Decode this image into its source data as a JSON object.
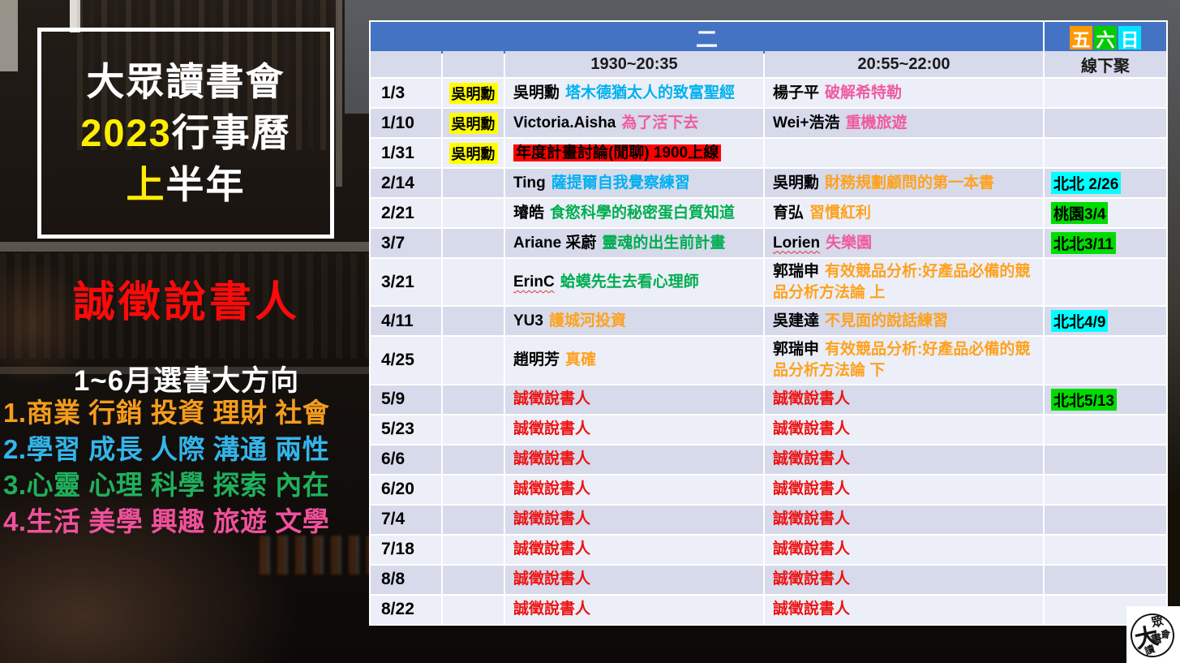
{
  "colors": {
    "header_blue": "#4573C4",
    "row_light": "#ECEFF7",
    "row_dark": "#D6DAEB",
    "t_blue": "#00B0F0",
    "t_magenta": "#EF5BA1",
    "t_green": "#00AD52",
    "t_orange": "#FFA11E",
    "t_red": "#EE1111",
    "hl_yellow": "#FFFF00",
    "hl_red": "#FF0000",
    "hl_cyan": "#00FFFF",
    "hl_green": "#00DC00",
    "wk_fri": "#FF9900",
    "wk_sat": "#00CC00",
    "wk_sun": "#00E5FF",
    "dir1": "#F59C1E",
    "dir2": "#33B5E9",
    "dir3": "#1FB05C",
    "dir4": "#F0519B",
    "title_yellow": "#FFEE00",
    "recruit_red": "#FA0A0A"
  },
  "left": {
    "title1": "大眾讀書會",
    "title2a": "2023",
    "title2b": "行事曆",
    "title3a": "上",
    "title3b": "半年",
    "recruit": "誠徵說書人",
    "dir_title": "1~6月選書大方向",
    "directions": [
      "1.商業 行銷 投資 理財 社會",
      "2.學習 成長 人際 溝通 兩性",
      "3.心靈 心理 科學 探索 內在",
      "4.生活 美學 興趣 旅遊 文學"
    ]
  },
  "table": {
    "day_header": "二",
    "weekend": [
      {
        "char": "五"
      },
      {
        "char": "六"
      },
      {
        "char": "日"
      }
    ],
    "time_headers": [
      "1930~20:35",
      "20:55~22:00"
    ],
    "offline_header": "線下聚",
    "rows": [
      {
        "date": "1/3",
        "tag": "吳明勳",
        "s1": {
          "name": "吳明勳",
          "title": "塔木德猶太人的致富聖經"
        },
        "s2": {
          "name": "楊子平",
          "title": "破解希特勒"
        },
        "offline": ""
      },
      {
        "date": "1/10",
        "tag": "吳明勳",
        "s1": {
          "name": "Victoria.Aisha",
          "title": "為了活下去"
        },
        "s2": {
          "name": "Wei+浩浩",
          "title": "重機旅遊"
        },
        "offline": ""
      },
      {
        "date": "1/31",
        "tag": "吳明勳",
        "s1": {
          "name": "",
          "title": "年度計畫討論(閒聊) 1900上線"
        },
        "s2": {
          "name": "",
          "title": ""
        },
        "offline": ""
      },
      {
        "date": "2/14",
        "tag": "",
        "s1": {
          "name": "Ting",
          "title": "薩提爾自我覺察練習"
        },
        "s2": {
          "name": "吳明勳",
          "title": "財務規劃顧問的第一本書"
        },
        "offline": "北北 2/26"
      },
      {
        "date": "2/21",
        "tag": "",
        "s1": {
          "name": "璿皓",
          "title": "食慾科學的秘密蛋白質知道"
        },
        "s2": {
          "name": "育弘",
          "title": "習慣紅利"
        },
        "offline": "桃園3/4"
      },
      {
        "date": "3/7",
        "tag": "",
        "s1": {
          "name": "Ariane 采蔚",
          "title": "靈魂的出生前計畫"
        },
        "s2": {
          "name": "Lorien",
          "title": "失樂園"
        },
        "offline": "北北3/11"
      },
      {
        "date": "3/21",
        "tag": "",
        "s1": {
          "name": "ErinC",
          "title": "蛤蟆先生去看心理師"
        },
        "s2": {
          "name": "郭瑞申",
          "title": "有效競品分析:好產品必備的競品分析方法論 上"
        },
        "offline": ""
      },
      {
        "date": "4/11",
        "tag": "",
        "s1": {
          "name": "YU3",
          "title": "護城河投資"
        },
        "s2": {
          "name": "吳建達",
          "title": "不見面的說話練習"
        },
        "offline": "北北4/9"
      },
      {
        "date": "4/25",
        "tag": "",
        "s1": {
          "name": "趙明芳",
          "title": "真確"
        },
        "s2": {
          "name": "郭瑞申",
          "title": "有效競品分析:好產品必備的競品分析方法論 下"
        },
        "offline": ""
      },
      {
        "date": "5/9",
        "tag": "",
        "s1": {
          "name": "",
          "title": "誠徵說書人"
        },
        "s2": {
          "name": "",
          "title": "誠徵說書人"
        },
        "offline": "北北5/13"
      },
      {
        "date": "5/23",
        "tag": "",
        "s1": {
          "name": "",
          "title": "誠徵說書人"
        },
        "s2": {
          "name": "",
          "title": "誠徵說書人"
        },
        "offline": ""
      },
      {
        "date": "6/6",
        "tag": "",
        "s1": {
          "name": "",
          "title": "誠徵說書人"
        },
        "s2": {
          "name": "",
          "title": "誠徵說書人"
        },
        "offline": ""
      },
      {
        "date": "6/20",
        "tag": "",
        "s1": {
          "name": "",
          "title": "誠徵說書人"
        },
        "s2": {
          "name": "",
          "title": "誠徵說書人"
        },
        "offline": ""
      },
      {
        "date": "7/4",
        "tag": "",
        "s1": {
          "name": "",
          "title": "誠徵說書人"
        },
        "s2": {
          "name": "",
          "title": "誠徵說書人"
        },
        "offline": ""
      },
      {
        "date": "7/18",
        "tag": "",
        "s1": {
          "name": "",
          "title": "誠徵說書人"
        },
        "s2": {
          "name": "",
          "title": "誠徵說書人"
        },
        "offline": ""
      },
      {
        "date": "8/8",
        "tag": "",
        "s1": {
          "name": "",
          "title": "誠徵說書人"
        },
        "s2": {
          "name": "",
          "title": "誠徵說書人"
        },
        "offline": ""
      },
      {
        "date": "8/22",
        "tag": "",
        "s1": {
          "name": "",
          "title": "誠徵說書人"
        },
        "s2": {
          "name": "",
          "title": "誠徵說書人"
        },
        "offline": ""
      }
    ]
  },
  "logo": {
    "chars": [
      "大",
      "眾",
      "讀",
      "書",
      "會"
    ]
  }
}
